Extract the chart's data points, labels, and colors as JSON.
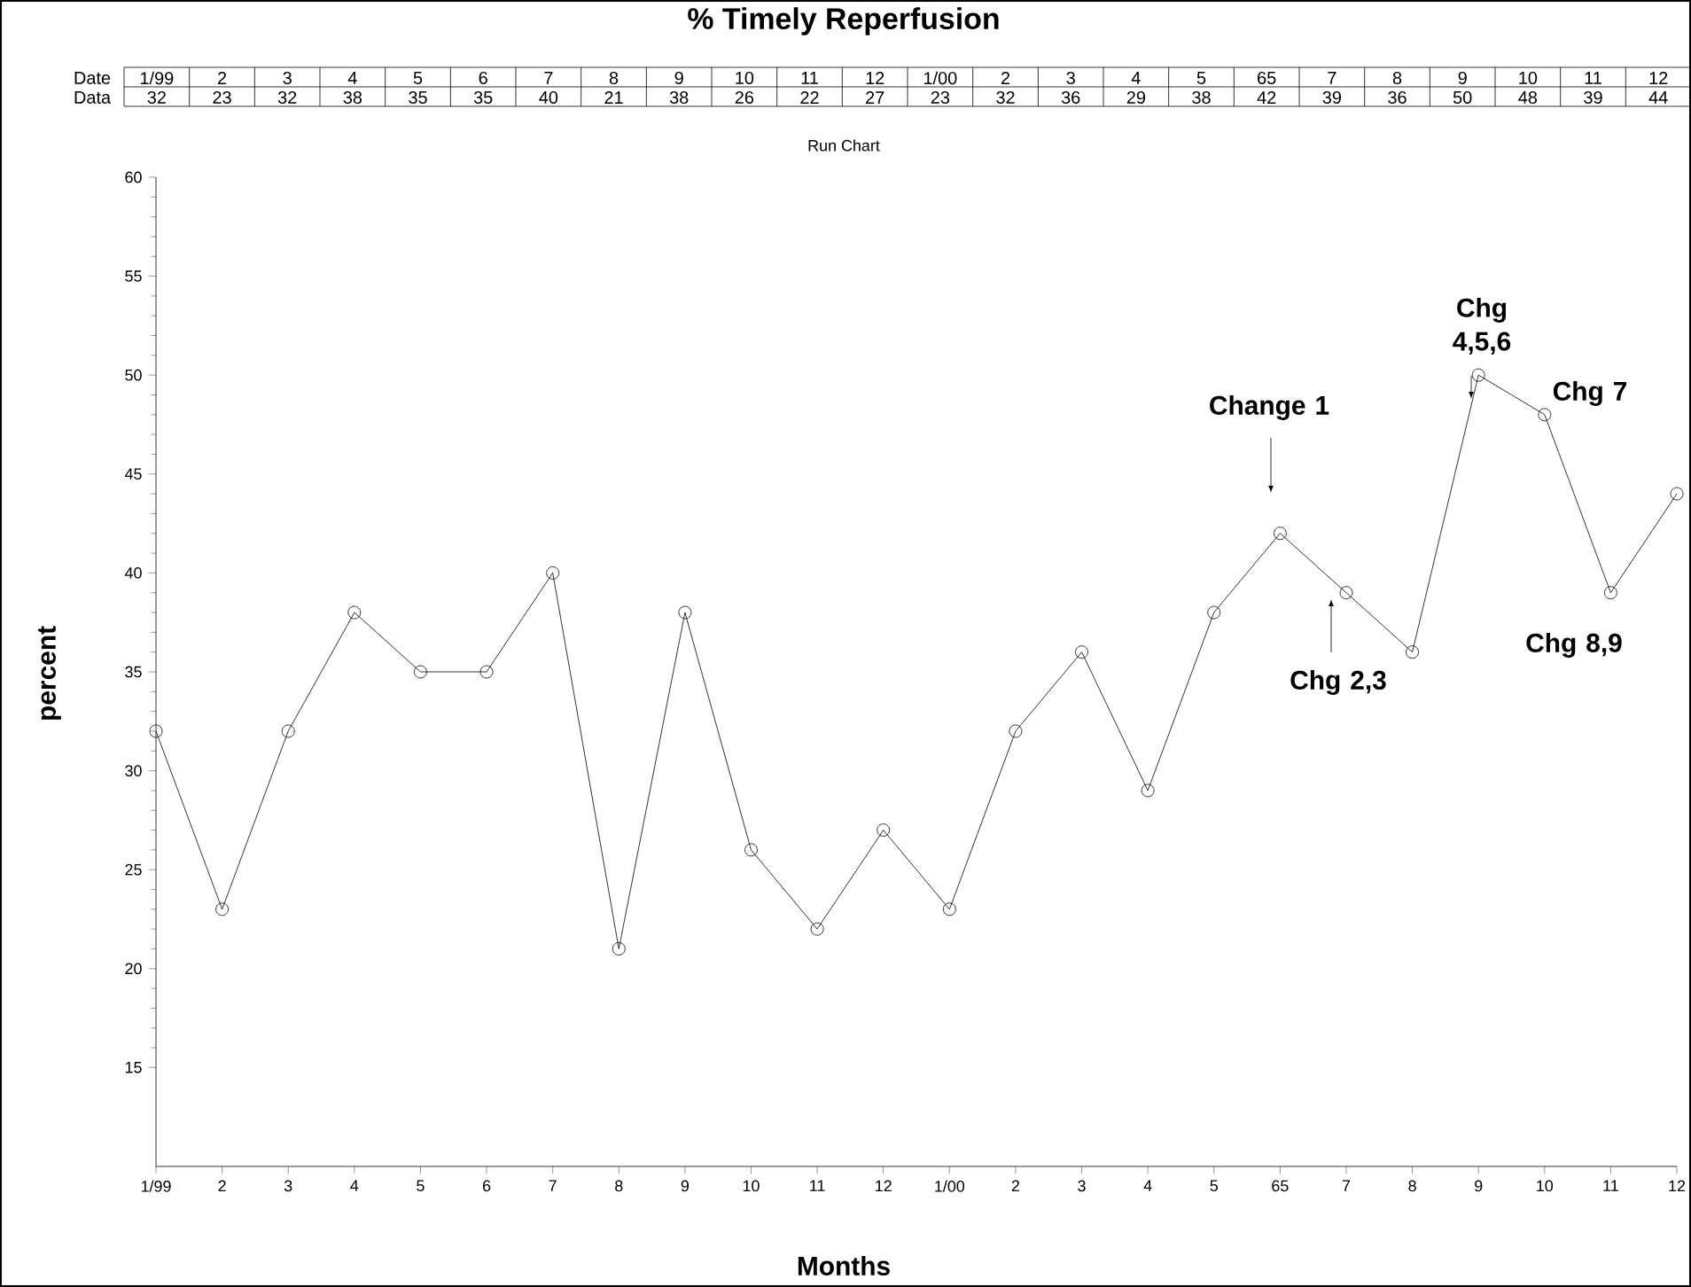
{
  "chart_data": {
    "type": "line",
    "title": "% Timely Reperfusion",
    "subtitle": "Run Chart",
    "xlabel": "Months",
    "ylabel": "percent",
    "categories": [
      "1/99",
      "2",
      "3",
      "4",
      "5",
      "6",
      "7",
      "8",
      "9",
      "10",
      "11",
      "12",
      "1/00",
      "2",
      "3",
      "4",
      "5",
      "65",
      "7",
      "8",
      "9",
      "10",
      "11",
      "12"
    ],
    "values": [
      32,
      23,
      32,
      38,
      35,
      35,
      40,
      21,
      38,
      26,
      22,
      27,
      23,
      32,
      36,
      29,
      38,
      42,
      39,
      36,
      50,
      48,
      39,
      44
    ],
    "color": "#000000",
    "marker": "circle",
    "line_style": "solid",
    "data_labels": true,
    "ylim": [
      10,
      60
    ],
    "yticks": [
      15,
      20,
      25,
      30,
      35,
      40,
      45,
      50,
      55,
      60
    ],
    "annotations": [
      "Date",
      "Data",
      "Change 1",
      "Chg 2,3",
      "Chg 4,5,6",
      "Chg 7",
      "Chg 8,9"
    ]
  }
}
